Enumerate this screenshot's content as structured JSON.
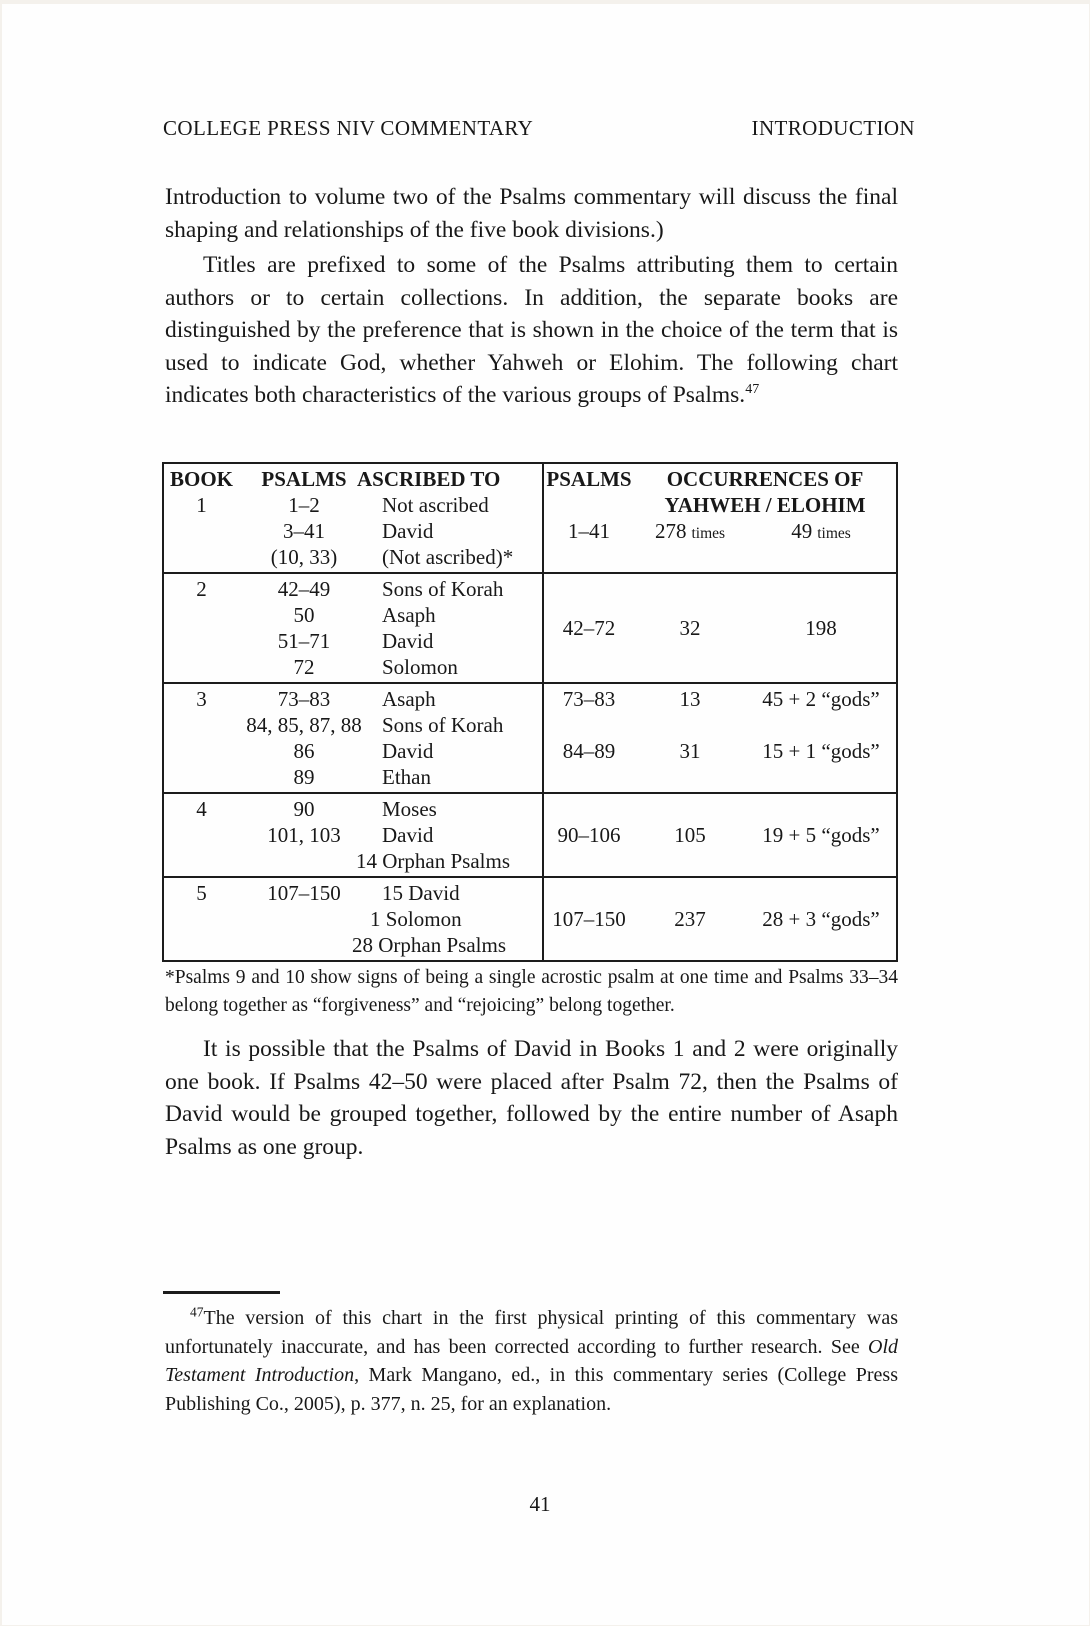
{
  "page": {
    "header_left": "COLLEGE PRESS NIV COMMENTARY",
    "header_right": "INTRODUCTION",
    "page_number": "41"
  },
  "colors": {
    "text": "#181818",
    "paper": "#fefefe",
    "scan_edge": "#f4f1ec"
  },
  "paragraphs": {
    "p1": "Introduction to volume two of the Psalms commentary will discuss the final shaping and relationships of the five book divisions.)",
    "p2": "Titles are prefixed to some of the Psalms attributing them to certain authors or to certain collections. In addition, the separate books are distinguished by the preference that is shown in the choice of the term that is used to indicate God, whether Yahweh or Elohim. The following chart indicates both characteristics of the various groups of Psalms.",
    "p3": "It is possible that the Psalms of David in Books 1 and 2 were originally one book. If Psalms 42–50 were placed after Psalm 72, then the Psalms of David would be grouped together, followed by the entire number of Asaph Psalms as one group."
  },
  "table": {
    "headers": {
      "book": "BOOK",
      "psalms": "PSALMS",
      "ascribed": "ASCRIBED TO",
      "psalms_right": "PSALMS",
      "occurrences_line1": "OCCURRENCES OF",
      "occurrences_line2": "YAHWEH / ELOHIM"
    },
    "rows": [
      {
        "book": "1",
        "lines": [
          {
            "psalms": "1–2",
            "ascribed": "Not ascribed"
          },
          {
            "psalms": "3–41",
            "ascribed": "David"
          },
          {
            "psalms": "(10, 33)",
            "ascribed": "(Not ascribed)*"
          }
        ],
        "right": {
          "psalms": "1–41",
          "yahweh": "278",
          "yahweh_unit": "times",
          "elohim": "49",
          "elohim_unit": "times"
        }
      },
      {
        "book": "2",
        "lines": [
          {
            "psalms": "42–49",
            "ascribed": "Sons of Korah"
          },
          {
            "psalms": "50",
            "ascribed": "Asaph"
          },
          {
            "psalms": "51–71",
            "ascribed": "David"
          },
          {
            "psalms": "72",
            "ascribed": "Solomon"
          }
        ],
        "right": {
          "psalms": "42–72",
          "yahweh": "32",
          "elohim": "198"
        }
      },
      {
        "book": "3",
        "lines": [
          {
            "psalms": "73–83",
            "ascribed": "Asaph"
          },
          {
            "psalms": "84, 85, 87, 88",
            "ascribed": "Sons of Korah"
          },
          {
            "psalms": "86",
            "ascribed": "David"
          },
          {
            "psalms": "89",
            "ascribed": "Ethan"
          }
        ],
        "right_lines": [
          {
            "psalms": "73–83",
            "yahweh": "13",
            "elohim": "45 + 2 “gods”"
          },
          {
            "psalms": "84–89",
            "yahweh": "31",
            "elohim": "15 + 1 “gods”"
          }
        ]
      },
      {
        "book": "4",
        "lines": [
          {
            "psalms": "90",
            "ascribed": "Moses"
          },
          {
            "psalms": "101, 103",
            "ascribed": "David"
          },
          {
            "psalms": "",
            "ascribed": "14 Orphan Psalms"
          }
        ],
        "right": {
          "psalms": "90–106",
          "yahweh": "105",
          "elohim": "19 + 5 “gods”"
        }
      },
      {
        "book": "5",
        "lines": [
          {
            "psalms": "107–150",
            "ascribed": "15 David"
          },
          {
            "psalms": "",
            "ascribed": "1 Solomon"
          },
          {
            "psalms": "",
            "ascribed": "28 Orphan Psalms"
          }
        ],
        "right": {
          "psalms": "107–150",
          "yahweh": "237",
          "elohim": "28 + 3 “gods”"
        }
      }
    ]
  },
  "table_note": "*Psalms 9 and 10 show signs of being a single acrostic psalm at one time and Psalms 33–34 belong together as “forgiveness” and “rejoicing” belong together.",
  "footnote": {
    "marker": "47",
    "text1": "The version of this chart in the first physical printing of this commentary was unfortunately inaccurate, and has been corrected according to further research. See ",
    "italic": "Old Testament Introduction",
    "text2": ", Mark Mangano, ed., in this commentary series (College Press Publishing Co., 2005), p. 377, n. 25, for an explanation."
  }
}
